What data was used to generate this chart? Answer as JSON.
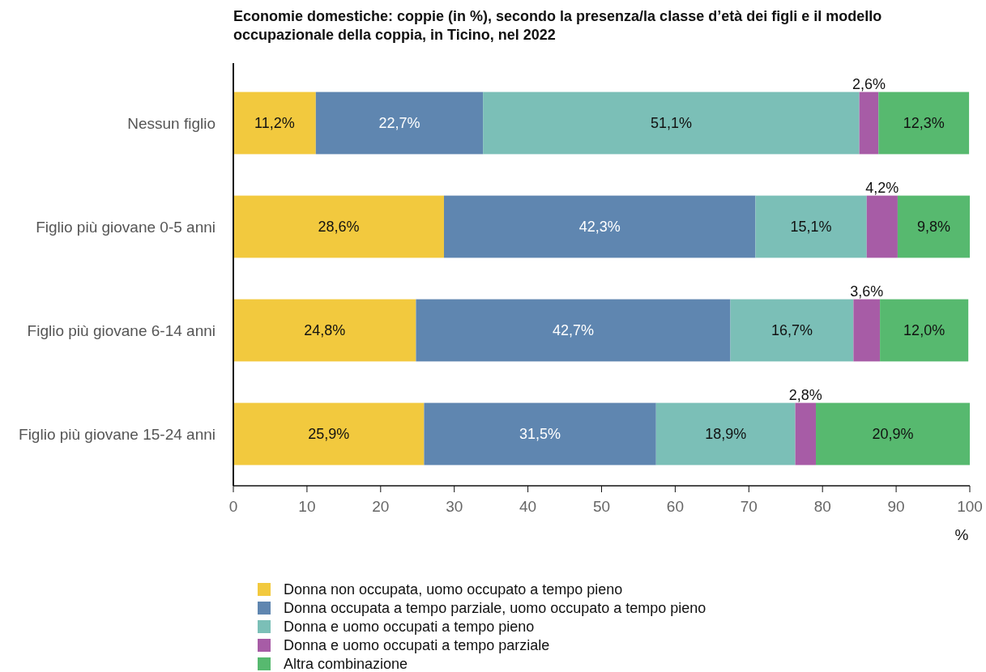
{
  "chart_data": {
    "type": "bar",
    "orientation": "horizontal",
    "stacked": true,
    "title": "Economie domestiche: coppie (in %), secondo la presenza/la classe d’età dei figli e il modello occupazionale della coppia, in Ticino, nel 2022",
    "categories": [
      "Nessun figlio",
      "Figlio più giovane 0-5 anni",
      "Figlio più giovane 6-14 anni",
      "Figlio più giovane 15-24 anni"
    ],
    "series": [
      {
        "name": "Donna non occupata, uomo occupato a tempo pieno",
        "color": "#f2c93e",
        "values": [
          11.2,
          28.6,
          24.8,
          25.9
        ],
        "value_labels": [
          "11,2%",
          "28,6%",
          "24,8%",
          "25,9%"
        ]
      },
      {
        "name": "Donna occupata a tempo parziale, uomo occupato a tempo pieno",
        "color": "#5f86b0",
        "values": [
          22.7,
          42.3,
          42.7,
          31.5
        ],
        "value_labels": [
          "22,7%",
          "42,3%",
          "42,7%",
          "31,5%"
        ]
      },
      {
        "name": "Donna e uomo occupati a tempo pieno",
        "color": "#7bbfb7",
        "values": [
          51.1,
          15.1,
          16.7,
          18.9
        ],
        "value_labels": [
          "51,1%",
          "15,1%",
          "16,7%",
          "18,9%"
        ]
      },
      {
        "name": "Donna e uomo occupati a tempo parziale",
        "color": "#a75ca6",
        "values": [
          2.6,
          4.2,
          3.6,
          2.8
        ],
        "value_labels": [
          "2,6%",
          "4,2%",
          "3,6%",
          "2,8%"
        ]
      },
      {
        "name": "Altra combinazione",
        "color": "#57b96f",
        "values": [
          12.3,
          9.8,
          12.0,
          20.9
        ],
        "value_labels": [
          "12,3%",
          "9,8%",
          "12,0%",
          "20,9%"
        ]
      }
    ],
    "xlim": [
      0,
      100
    ],
    "xticks": [
      0,
      10,
      20,
      30,
      40,
      50,
      60,
      70,
      80,
      90,
      100
    ],
    "xlabel": "%",
    "legend": "bottom",
    "grid": false
  }
}
